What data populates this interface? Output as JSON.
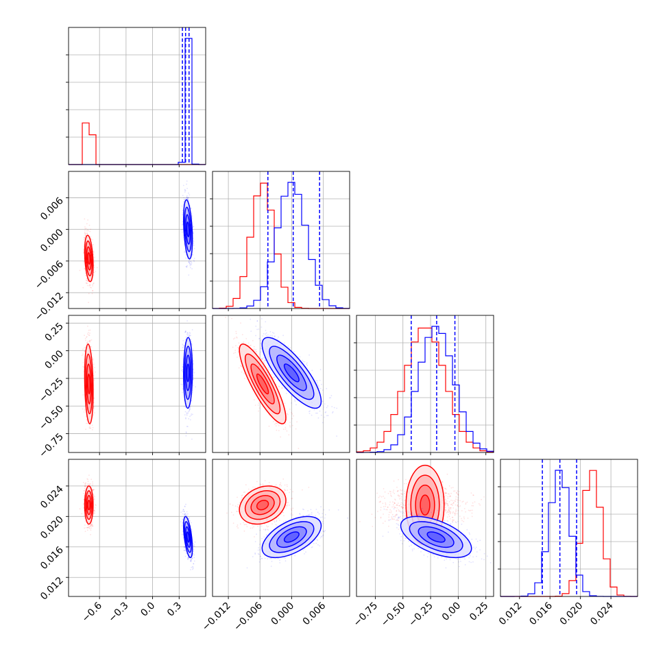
{
  "chart_data": {
    "type": "corner",
    "parameters": [
      {
        "range": [
          -0.95,
          0.6
        ],
        "ticks": [
          -0.6,
          -0.3,
          0.0,
          0.3
        ],
        "tick_labels": [
          "−0.6",
          "−0.3",
          "0.0",
          "0.3"
        ]
      },
      {
        "range": [
          -0.015,
          0.011
        ],
        "ticks": [
          -0.012,
          -0.006,
          0.0,
          0.006
        ],
        "tick_labels": [
          "−0.012",
          "−0.006",
          "0.000",
          "0.006"
        ]
      },
      {
        "range": [
          -0.92,
          0.32
        ],
        "ticks": [
          -0.75,
          -0.5,
          -0.25,
          0.0,
          0.25
        ],
        "tick_labels": [
          "−0.75",
          "−0.50",
          "−0.25",
          "0.00",
          "0.25"
        ]
      },
      {
        "range": [
          0.0095,
          0.0275
        ],
        "ticks": [
          0.012,
          0.016,
          0.02,
          0.024
        ],
        "tick_labels": [
          "0.012",
          "0.016",
          "0.020",
          "0.024"
        ]
      }
    ],
    "grid": true,
    "series": [
      {
        "color": "#ff0000",
        "means": [
          -0.72,
          -0.0055,
          -0.3,
          0.0215
        ],
        "sigmas": [
          0.024,
          0.0022,
          0.18,
          0.00125
        ],
        "correlations": [
          [
            1,
            -0.3,
            -0.2,
            0.0
          ],
          [
            -0.3,
            1,
            -0.85,
            0.25
          ],
          [
            -0.2,
            -0.85,
            1,
            0.0
          ],
          [
            0.0,
            0.25,
            0.0,
            1
          ]
        ],
        "quantiles": null
      },
      {
        "color": "#0000ff",
        "means": [
          0.4,
          0.0,
          -0.2,
          0.0173
        ],
        "sigmas": [
          0.025,
          0.0028,
          0.16,
          0.00135
        ],
        "correlations": [
          [
            1,
            -0.35,
            0.05,
            -0.55
          ],
          [
            -0.35,
            1,
            -0.8,
            0.55
          ],
          [
            0.05,
            -0.8,
            1,
            -0.55
          ],
          [
            -0.55,
            0.55,
            -0.55,
            1
          ]
        ],
        "quantiles": [
          [
            0.337,
            0.373,
            0.412
          ],
          [
            -0.0045,
            0.0003,
            0.0053
          ],
          [
            -0.425,
            -0.195,
            -0.03
          ],
          [
            0.015,
            0.0173,
            0.0195
          ]
        ]
      }
    ]
  }
}
